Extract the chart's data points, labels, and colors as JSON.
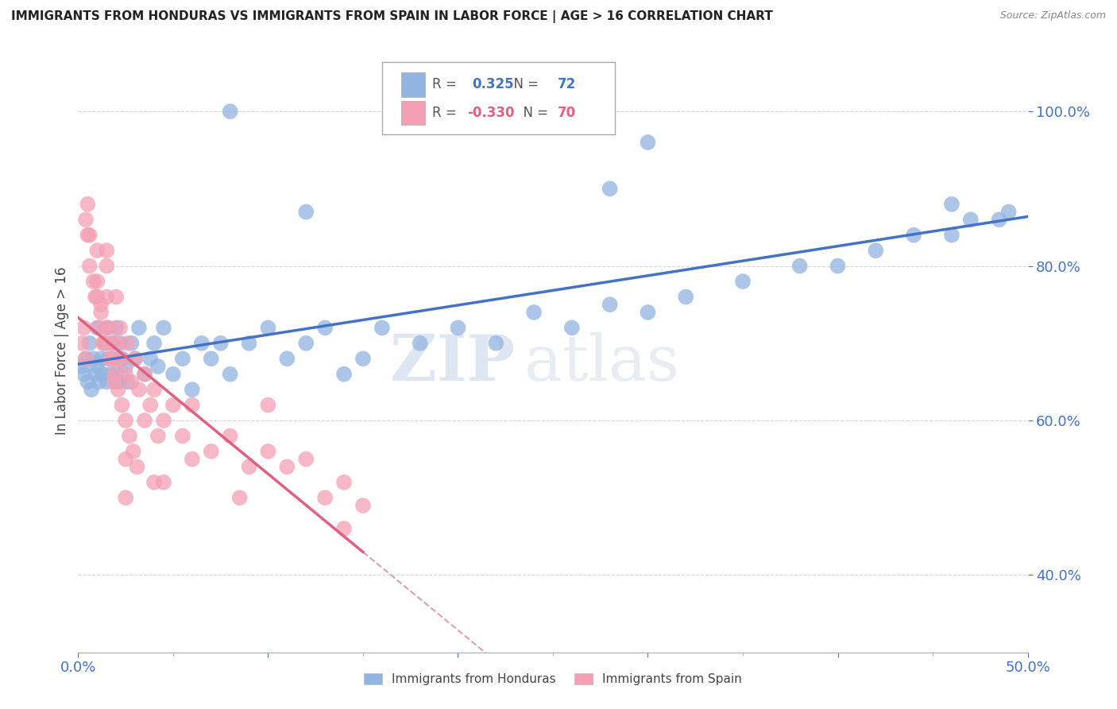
{
  "title": "IMMIGRANTS FROM HONDURAS VS IMMIGRANTS FROM SPAIN IN LABOR FORCE | AGE > 16 CORRELATION CHART",
  "source": "Source: ZipAtlas.com",
  "ylabel": "In Labor Force | Age > 16",
  "xlim": [
    0.0,
    50.0
  ],
  "ylim": [
    30.0,
    108.0
  ],
  "yticks": [
    40.0,
    60.0,
    80.0,
    100.0
  ],
  "legend_honduras_r": "0.325",
  "legend_honduras_n": "72",
  "legend_spain_r": "-0.330",
  "legend_spain_n": "70",
  "color_honduras": "#92b4e0",
  "color_spain": "#f4a0b4",
  "color_trend_honduras": "#4472c4",
  "color_trend_spain": "#e06080",
  "color_dashed": "#d8a0b0",
  "watermark_zip": "ZIP",
  "watermark_atlas": "atlas",
  "honduras_x": [
    0.2,
    0.3,
    0.4,
    0.5,
    0.6,
    0.7,
    0.8,
    0.9,
    1.0,
    1.0,
    1.1,
    1.2,
    1.3,
    1.4,
    1.5,
    1.5,
    1.6,
    1.7,
    1.8,
    1.9,
    2.0,
    2.0,
    2.1,
    2.2,
    2.3,
    2.5,
    2.6,
    2.8,
    3.0,
    3.2,
    3.5,
    3.8,
    4.0,
    4.2,
    4.5,
    5.0,
    5.5,
    6.0,
    6.5,
    7.0,
    7.5,
    8.0,
    9.0,
    10.0,
    11.0,
    12.0,
    13.0,
    14.0,
    15.0,
    16.0,
    18.0,
    20.0,
    22.0,
    24.0,
    26.0,
    28.0,
    30.0,
    32.0,
    35.0,
    38.0,
    40.0,
    42.0,
    44.0,
    46.0,
    47.0,
    48.5,
    49.0,
    8.0,
    30.0,
    28.0,
    46.0,
    12.0
  ],
  "honduras_y": [
    67,
    66,
    68,
    65,
    70,
    64,
    68,
    66,
    67,
    72,
    65,
    68,
    66,
    70,
    65,
    72,
    68,
    66,
    70,
    68,
    66,
    72,
    65,
    70,
    68,
    67,
    65,
    70,
    68,
    72,
    66,
    68,
    70,
    67,
    72,
    66,
    68,
    64,
    70,
    68,
    70,
    66,
    70,
    72,
    68,
    70,
    72,
    66,
    68,
    72,
    70,
    72,
    70,
    74,
    72,
    75,
    74,
    76,
    78,
    80,
    80,
    82,
    84,
    84,
    86,
    86,
    87,
    100,
    96,
    90,
    88,
    87
  ],
  "spain_x": [
    0.2,
    0.3,
    0.4,
    0.5,
    0.6,
    0.8,
    1.0,
    1.0,
    1.1,
    1.2,
    1.3,
    1.5,
    1.5,
    1.6,
    1.7,
    1.8,
    1.9,
    2.0,
    2.0,
    2.1,
    2.2,
    2.3,
    2.5,
    2.6,
    2.8,
    3.0,
    3.2,
    3.5,
    3.8,
    4.0,
    4.5,
    5.0,
    5.5,
    6.0,
    7.0,
    8.0,
    9.0,
    10.0,
    11.0,
    12.0,
    13.0,
    14.0,
    15.0,
    3.5,
    4.2,
    0.4,
    0.5,
    0.6,
    0.9,
    1.0,
    1.2,
    1.4,
    1.5,
    1.7,
    1.9,
    2.1,
    2.3,
    2.5,
    2.7,
    2.9,
    3.1,
    1.5,
    2.5,
    2.5,
    4.0,
    10.0,
    14.0,
    4.5,
    6.0,
    8.5
  ],
  "spain_y": [
    70,
    72,
    68,
    84,
    80,
    78,
    76,
    82,
    72,
    74,
    70,
    76,
    80,
    72,
    68,
    70,
    66,
    70,
    76,
    68,
    72,
    68,
    66,
    70,
    65,
    68,
    64,
    66,
    62,
    64,
    60,
    62,
    58,
    62,
    56,
    58,
    54,
    56,
    54,
    55,
    50,
    52,
    49,
    60,
    58,
    86,
    88,
    84,
    76,
    78,
    75,
    70,
    72,
    68,
    65,
    64,
    62,
    60,
    58,
    56,
    54,
    82,
    55,
    50,
    52,
    62,
    46,
    52,
    55,
    50
  ],
  "spain_solid_xmax": 15.0,
  "dashed_xmin": 15.0,
  "dashed_xmax": 50.0
}
